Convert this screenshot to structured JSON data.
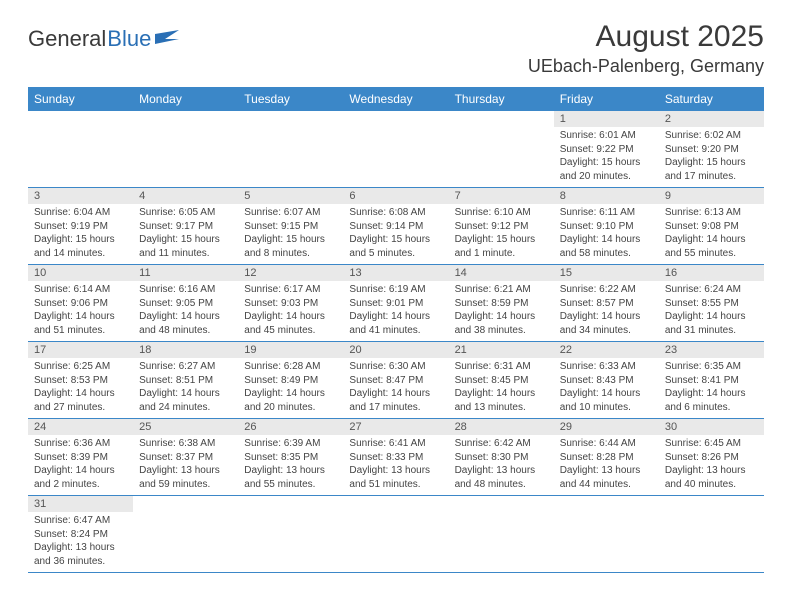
{
  "logo": {
    "word1": "General",
    "word2": "Blue"
  },
  "title": "August 2025",
  "location": "UEbach-Palenberg, Germany",
  "colors": {
    "header_bg": "#3b87c8",
    "header_fg": "#ffffff",
    "daynum_bg": "#e9e9e9",
    "row_divider": "#3b87c8",
    "text": "#3a3a3a",
    "logo_blue": "#2a6fb5"
  },
  "weekdays": [
    "Sunday",
    "Monday",
    "Tuesday",
    "Wednesday",
    "Thursday",
    "Friday",
    "Saturday"
  ],
  "weeks": [
    [
      null,
      null,
      null,
      null,
      null,
      {
        "n": "1",
        "sr": "Sunrise: 6:01 AM",
        "ss": "Sunset: 9:22 PM",
        "d1": "Daylight: 15 hours",
        "d2": "and 20 minutes."
      },
      {
        "n": "2",
        "sr": "Sunrise: 6:02 AM",
        "ss": "Sunset: 9:20 PM",
        "d1": "Daylight: 15 hours",
        "d2": "and 17 minutes."
      }
    ],
    [
      {
        "n": "3",
        "sr": "Sunrise: 6:04 AM",
        "ss": "Sunset: 9:19 PM",
        "d1": "Daylight: 15 hours",
        "d2": "and 14 minutes."
      },
      {
        "n": "4",
        "sr": "Sunrise: 6:05 AM",
        "ss": "Sunset: 9:17 PM",
        "d1": "Daylight: 15 hours",
        "d2": "and 11 minutes."
      },
      {
        "n": "5",
        "sr": "Sunrise: 6:07 AM",
        "ss": "Sunset: 9:15 PM",
        "d1": "Daylight: 15 hours",
        "d2": "and 8 minutes."
      },
      {
        "n": "6",
        "sr": "Sunrise: 6:08 AM",
        "ss": "Sunset: 9:14 PM",
        "d1": "Daylight: 15 hours",
        "d2": "and 5 minutes."
      },
      {
        "n": "7",
        "sr": "Sunrise: 6:10 AM",
        "ss": "Sunset: 9:12 PM",
        "d1": "Daylight: 15 hours",
        "d2": "and 1 minute."
      },
      {
        "n": "8",
        "sr": "Sunrise: 6:11 AM",
        "ss": "Sunset: 9:10 PM",
        "d1": "Daylight: 14 hours",
        "d2": "and 58 minutes."
      },
      {
        "n": "9",
        "sr": "Sunrise: 6:13 AM",
        "ss": "Sunset: 9:08 PM",
        "d1": "Daylight: 14 hours",
        "d2": "and 55 minutes."
      }
    ],
    [
      {
        "n": "10",
        "sr": "Sunrise: 6:14 AM",
        "ss": "Sunset: 9:06 PM",
        "d1": "Daylight: 14 hours",
        "d2": "and 51 minutes."
      },
      {
        "n": "11",
        "sr": "Sunrise: 6:16 AM",
        "ss": "Sunset: 9:05 PM",
        "d1": "Daylight: 14 hours",
        "d2": "and 48 minutes."
      },
      {
        "n": "12",
        "sr": "Sunrise: 6:17 AM",
        "ss": "Sunset: 9:03 PM",
        "d1": "Daylight: 14 hours",
        "d2": "and 45 minutes."
      },
      {
        "n": "13",
        "sr": "Sunrise: 6:19 AM",
        "ss": "Sunset: 9:01 PM",
        "d1": "Daylight: 14 hours",
        "d2": "and 41 minutes."
      },
      {
        "n": "14",
        "sr": "Sunrise: 6:21 AM",
        "ss": "Sunset: 8:59 PM",
        "d1": "Daylight: 14 hours",
        "d2": "and 38 minutes."
      },
      {
        "n": "15",
        "sr": "Sunrise: 6:22 AM",
        "ss": "Sunset: 8:57 PM",
        "d1": "Daylight: 14 hours",
        "d2": "and 34 minutes."
      },
      {
        "n": "16",
        "sr": "Sunrise: 6:24 AM",
        "ss": "Sunset: 8:55 PM",
        "d1": "Daylight: 14 hours",
        "d2": "and 31 minutes."
      }
    ],
    [
      {
        "n": "17",
        "sr": "Sunrise: 6:25 AM",
        "ss": "Sunset: 8:53 PM",
        "d1": "Daylight: 14 hours",
        "d2": "and 27 minutes."
      },
      {
        "n": "18",
        "sr": "Sunrise: 6:27 AM",
        "ss": "Sunset: 8:51 PM",
        "d1": "Daylight: 14 hours",
        "d2": "and 24 minutes."
      },
      {
        "n": "19",
        "sr": "Sunrise: 6:28 AM",
        "ss": "Sunset: 8:49 PM",
        "d1": "Daylight: 14 hours",
        "d2": "and 20 minutes."
      },
      {
        "n": "20",
        "sr": "Sunrise: 6:30 AM",
        "ss": "Sunset: 8:47 PM",
        "d1": "Daylight: 14 hours",
        "d2": "and 17 minutes."
      },
      {
        "n": "21",
        "sr": "Sunrise: 6:31 AM",
        "ss": "Sunset: 8:45 PM",
        "d1": "Daylight: 14 hours",
        "d2": "and 13 minutes."
      },
      {
        "n": "22",
        "sr": "Sunrise: 6:33 AM",
        "ss": "Sunset: 8:43 PM",
        "d1": "Daylight: 14 hours",
        "d2": "and 10 minutes."
      },
      {
        "n": "23",
        "sr": "Sunrise: 6:35 AM",
        "ss": "Sunset: 8:41 PM",
        "d1": "Daylight: 14 hours",
        "d2": "and 6 minutes."
      }
    ],
    [
      {
        "n": "24",
        "sr": "Sunrise: 6:36 AM",
        "ss": "Sunset: 8:39 PM",
        "d1": "Daylight: 14 hours",
        "d2": "and 2 minutes."
      },
      {
        "n": "25",
        "sr": "Sunrise: 6:38 AM",
        "ss": "Sunset: 8:37 PM",
        "d1": "Daylight: 13 hours",
        "d2": "and 59 minutes."
      },
      {
        "n": "26",
        "sr": "Sunrise: 6:39 AM",
        "ss": "Sunset: 8:35 PM",
        "d1": "Daylight: 13 hours",
        "d2": "and 55 minutes."
      },
      {
        "n": "27",
        "sr": "Sunrise: 6:41 AM",
        "ss": "Sunset: 8:33 PM",
        "d1": "Daylight: 13 hours",
        "d2": "and 51 minutes."
      },
      {
        "n": "28",
        "sr": "Sunrise: 6:42 AM",
        "ss": "Sunset: 8:30 PM",
        "d1": "Daylight: 13 hours",
        "d2": "and 48 minutes."
      },
      {
        "n": "29",
        "sr": "Sunrise: 6:44 AM",
        "ss": "Sunset: 8:28 PM",
        "d1": "Daylight: 13 hours",
        "d2": "and 44 minutes."
      },
      {
        "n": "30",
        "sr": "Sunrise: 6:45 AM",
        "ss": "Sunset: 8:26 PM",
        "d1": "Daylight: 13 hours",
        "d2": "and 40 minutes."
      }
    ],
    [
      {
        "n": "31",
        "sr": "Sunrise: 6:47 AM",
        "ss": "Sunset: 8:24 PM",
        "d1": "Daylight: 13 hours",
        "d2": "and 36 minutes."
      },
      null,
      null,
      null,
      null,
      null,
      null
    ]
  ]
}
